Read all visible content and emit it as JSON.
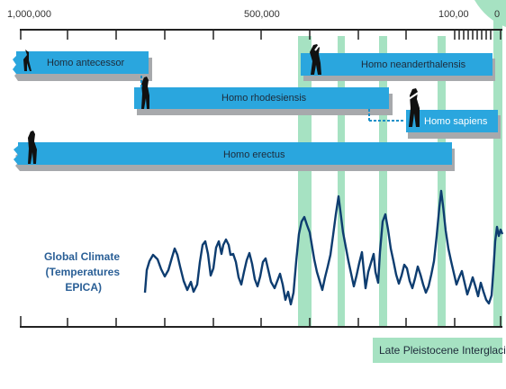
{
  "timeline": {
    "ticks": [
      "1,000,000",
      "500,000",
      "100,00",
      "0"
    ]
  },
  "species": [
    {
      "name": "Homo antecessor"
    },
    {
      "name": "Homo neanderthalensis"
    },
    {
      "name": "Homo rhodesiensis"
    },
    {
      "name": "Homo sapiens"
    },
    {
      "name": "Homo erectus"
    }
  ],
  "climate": {
    "label_lines": [
      "Global Climate",
      "(Temperatures",
      "EPICA)"
    ]
  },
  "legend": {
    "label": "Late Pleistocene Interglacials"
  },
  "colors": {
    "bar": "#2aa6de",
    "bar_dark": "#1b8fc8",
    "shadow": "#a7a9ac",
    "interglacial": "#a6e2c2",
    "climate_line": "#0e3d70",
    "climate_label": "#2a5f96"
  },
  "icons": [
    "hominin-silhouette-icon"
  ]
}
